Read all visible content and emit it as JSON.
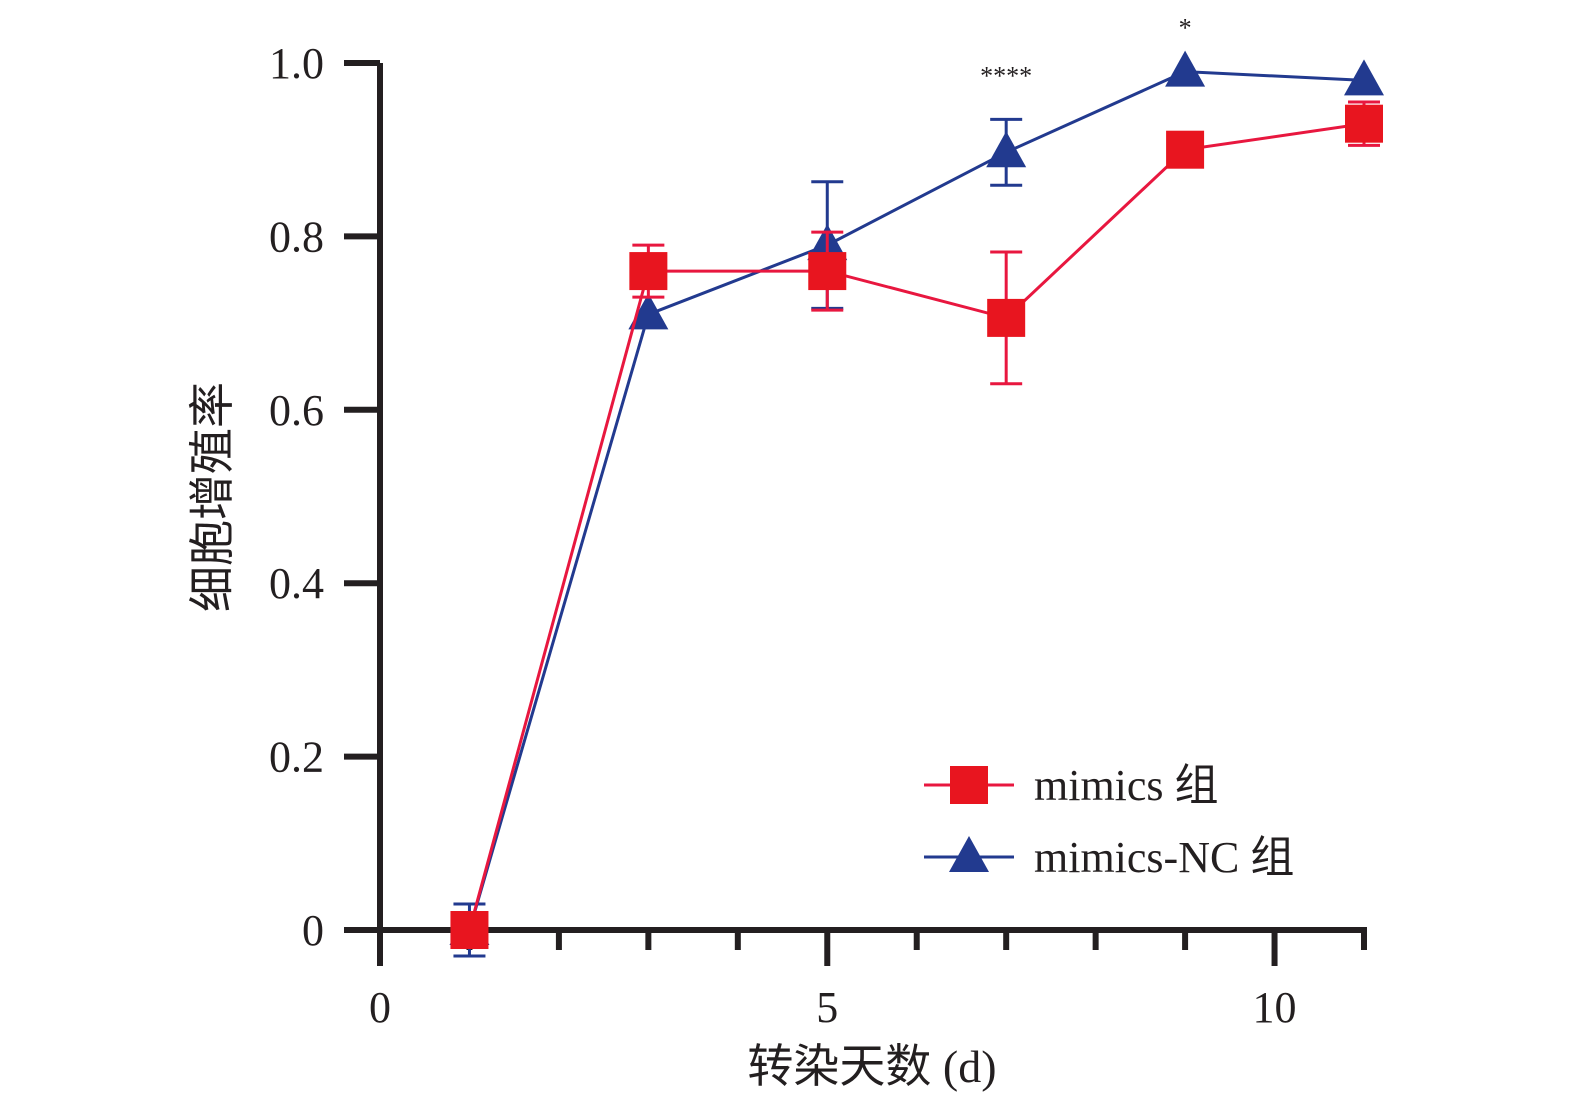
{
  "chart_data": {
    "type": "line",
    "xlabel": "转染天数 (d)",
    "ylabel": "细胞增殖率",
    "xlim": [
      0,
      11
    ],
    "ylim": [
      0,
      1.0
    ],
    "x_ticks": [
      0,
      5,
      10
    ],
    "x_tick_labels": [
      "0",
      "5",
      "10"
    ],
    "y_ticks": [
      0,
      0.2,
      0.4,
      0.6,
      0.8,
      1.0
    ],
    "y_tick_labels": [
      "0",
      "0.2",
      "0.4",
      "0.6",
      "0.8",
      "1.0"
    ],
    "x": [
      1,
      3,
      5,
      7,
      9,
      11
    ],
    "series": [
      {
        "name": "mimics 组",
        "marker": "square",
        "color": "#e8151f",
        "line_color": "#e8173f",
        "values": [
          0.0,
          0.76,
          0.76,
          0.706,
          0.9,
          0.93
        ],
        "error": [
          0.0,
          0.03,
          0.045,
          0.076,
          0.015,
          0.025
        ]
      },
      {
        "name": "mimics-NC 组",
        "marker": "triangle",
        "color": "#223a8f",
        "line_color": "#223a8f",
        "values": [
          0.0,
          0.71,
          0.79,
          0.897,
          0.99,
          0.98
        ],
        "error": [
          0.03,
          0.0,
          0.073,
          0.038,
          0.0,
          0.0
        ]
      }
    ],
    "annotations": [
      {
        "x": 7,
        "text": "****"
      },
      {
        "x": 9,
        "text": "*"
      }
    ],
    "legend_position": "bottom-right",
    "grid": false
  }
}
